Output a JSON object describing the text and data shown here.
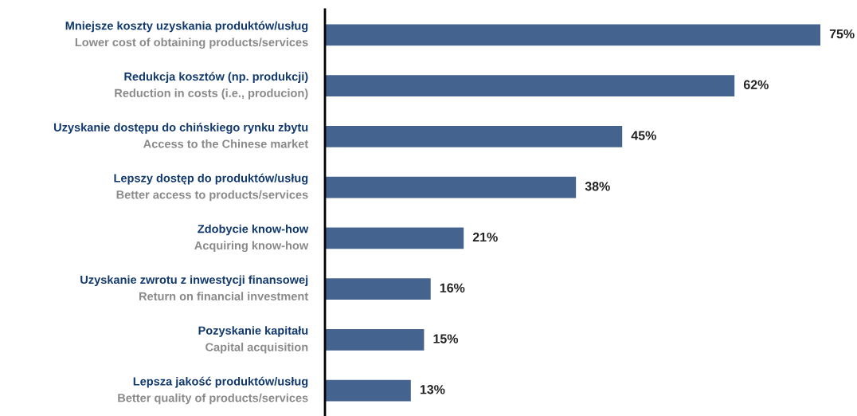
{
  "chart_data": {
    "type": "bar",
    "orientation": "horizontal",
    "data_labels": false,
    "categories": [
      "Mniejsze koszty uzyskania produktów/usług\nLower cost of obtaining products/services",
      "Redukcja kosztów (np. produkcji)\nReduction in costs (i.e., producion)",
      "Uzyskanie dostępu do chińskiego rynku zbytu\nAccess to the Chinese market",
      "Lepszy dostęp do produktów/usług\nBetter access to products/services",
      "Zdobycie know-how\nAcquiring know-how",
      "Uzyskanie zwrotu z inwestycji finansowej\nReturn on financial investment",
      "Pozyskanie kapitału\nCapital acquisition",
      "Lepsza jakość produktów/usług\nBetter quality of products/services"
    ],
    "values": [
      75,
      62,
      45,
      38,
      21,
      16,
      15,
      13
    ],
    "value_labels": [
      "75%",
      "62%",
      "45%",
      "38%",
      "21%",
      "16%",
      "15%",
      "13%"
    ],
    "color": "#44638f"
  }
}
